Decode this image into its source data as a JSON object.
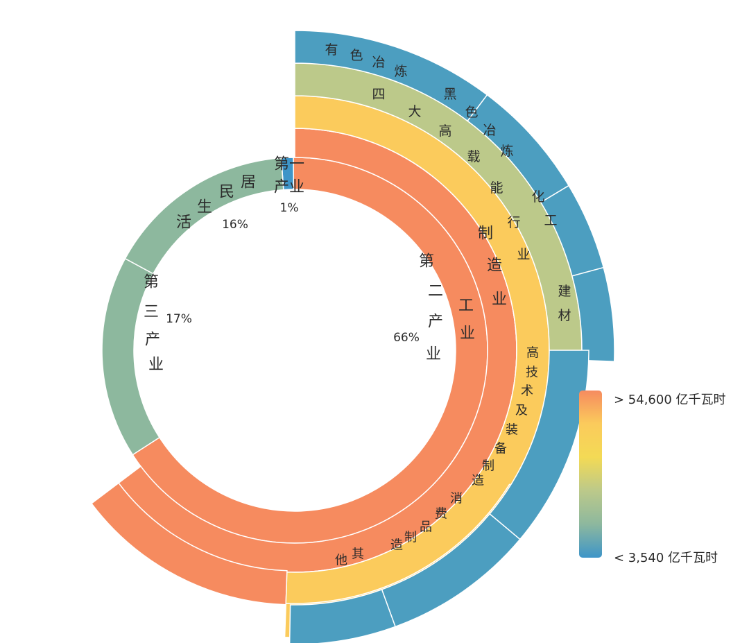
{
  "chart_data": {
    "type": "sunburst",
    "title": "",
    "unit": "亿千瓦时",
    "colors": {
      "tier1": "#F68B5F",
      "tier2": "#FBCB5C",
      "tier3": "#BCC98A",
      "tier4": "#4C9EC0",
      "tier5": "#8DB89E",
      "primary": "#3E95C8",
      "separator": "#ffffff"
    },
    "inner_ring": [
      {
        "name": "第一产业",
        "display": [
          "第一",
          "产业"
        ],
        "share_pct": 1,
        "share_label": "1%",
        "color_key": "primary"
      },
      {
        "name": "第二产业",
        "display": [
          "第",
          "二",
          "产",
          "业"
        ],
        "share_pct": 66,
        "share_label": "66%",
        "color_key": "tier1"
      },
      {
        "name": "第三产业",
        "display": [
          "第",
          "三",
          "产",
          "业"
        ],
        "share_pct": 17,
        "share_label": "17%",
        "color_key": "tier5"
      },
      {
        "name": "居民生活",
        "display": [
          "居",
          "民",
          "生",
          "活"
        ],
        "share_pct": 16,
        "share_label": "16%",
        "color_key": "tier5"
      }
    ],
    "children": {
      "第二产业": {
        "name": "工业",
        "color_key": "tier1",
        "children": [
          {
            "name": "制造业",
            "color_key": "tier2",
            "children": [
              {
                "name": "四大高载能行业",
                "color_key": "tier3",
                "children": [
                  {
                    "name": "有色冶炼",
                    "color_key": "tier4"
                  },
                  {
                    "name": "黑色冶炼",
                    "color_key": "tier4"
                  },
                  {
                    "name": "化工",
                    "color_key": "tier4"
                  },
                  {
                    "name": "建材",
                    "color_key": "tier4"
                  }
                ]
              },
              {
                "name": "高技术及装备制造",
                "color_key": "tier4"
              },
              {
                "name": "消费品制造",
                "color_key": "tier4"
              },
              {
                "name": "其他",
                "color_key": "tier4"
              }
            ]
          }
        ]
      }
    },
    "legend": {
      "type": "color-scale",
      "position": "right",
      "max_label": "> 54,600 亿千瓦时",
      "min_label": "< 3,540 亿千瓦时",
      "gradient": [
        "#F68B5F",
        "#FBCB5C",
        "#F3DA55",
        "#BCC98A",
        "#8DB89E",
        "#3E95C8"
      ]
    }
  }
}
